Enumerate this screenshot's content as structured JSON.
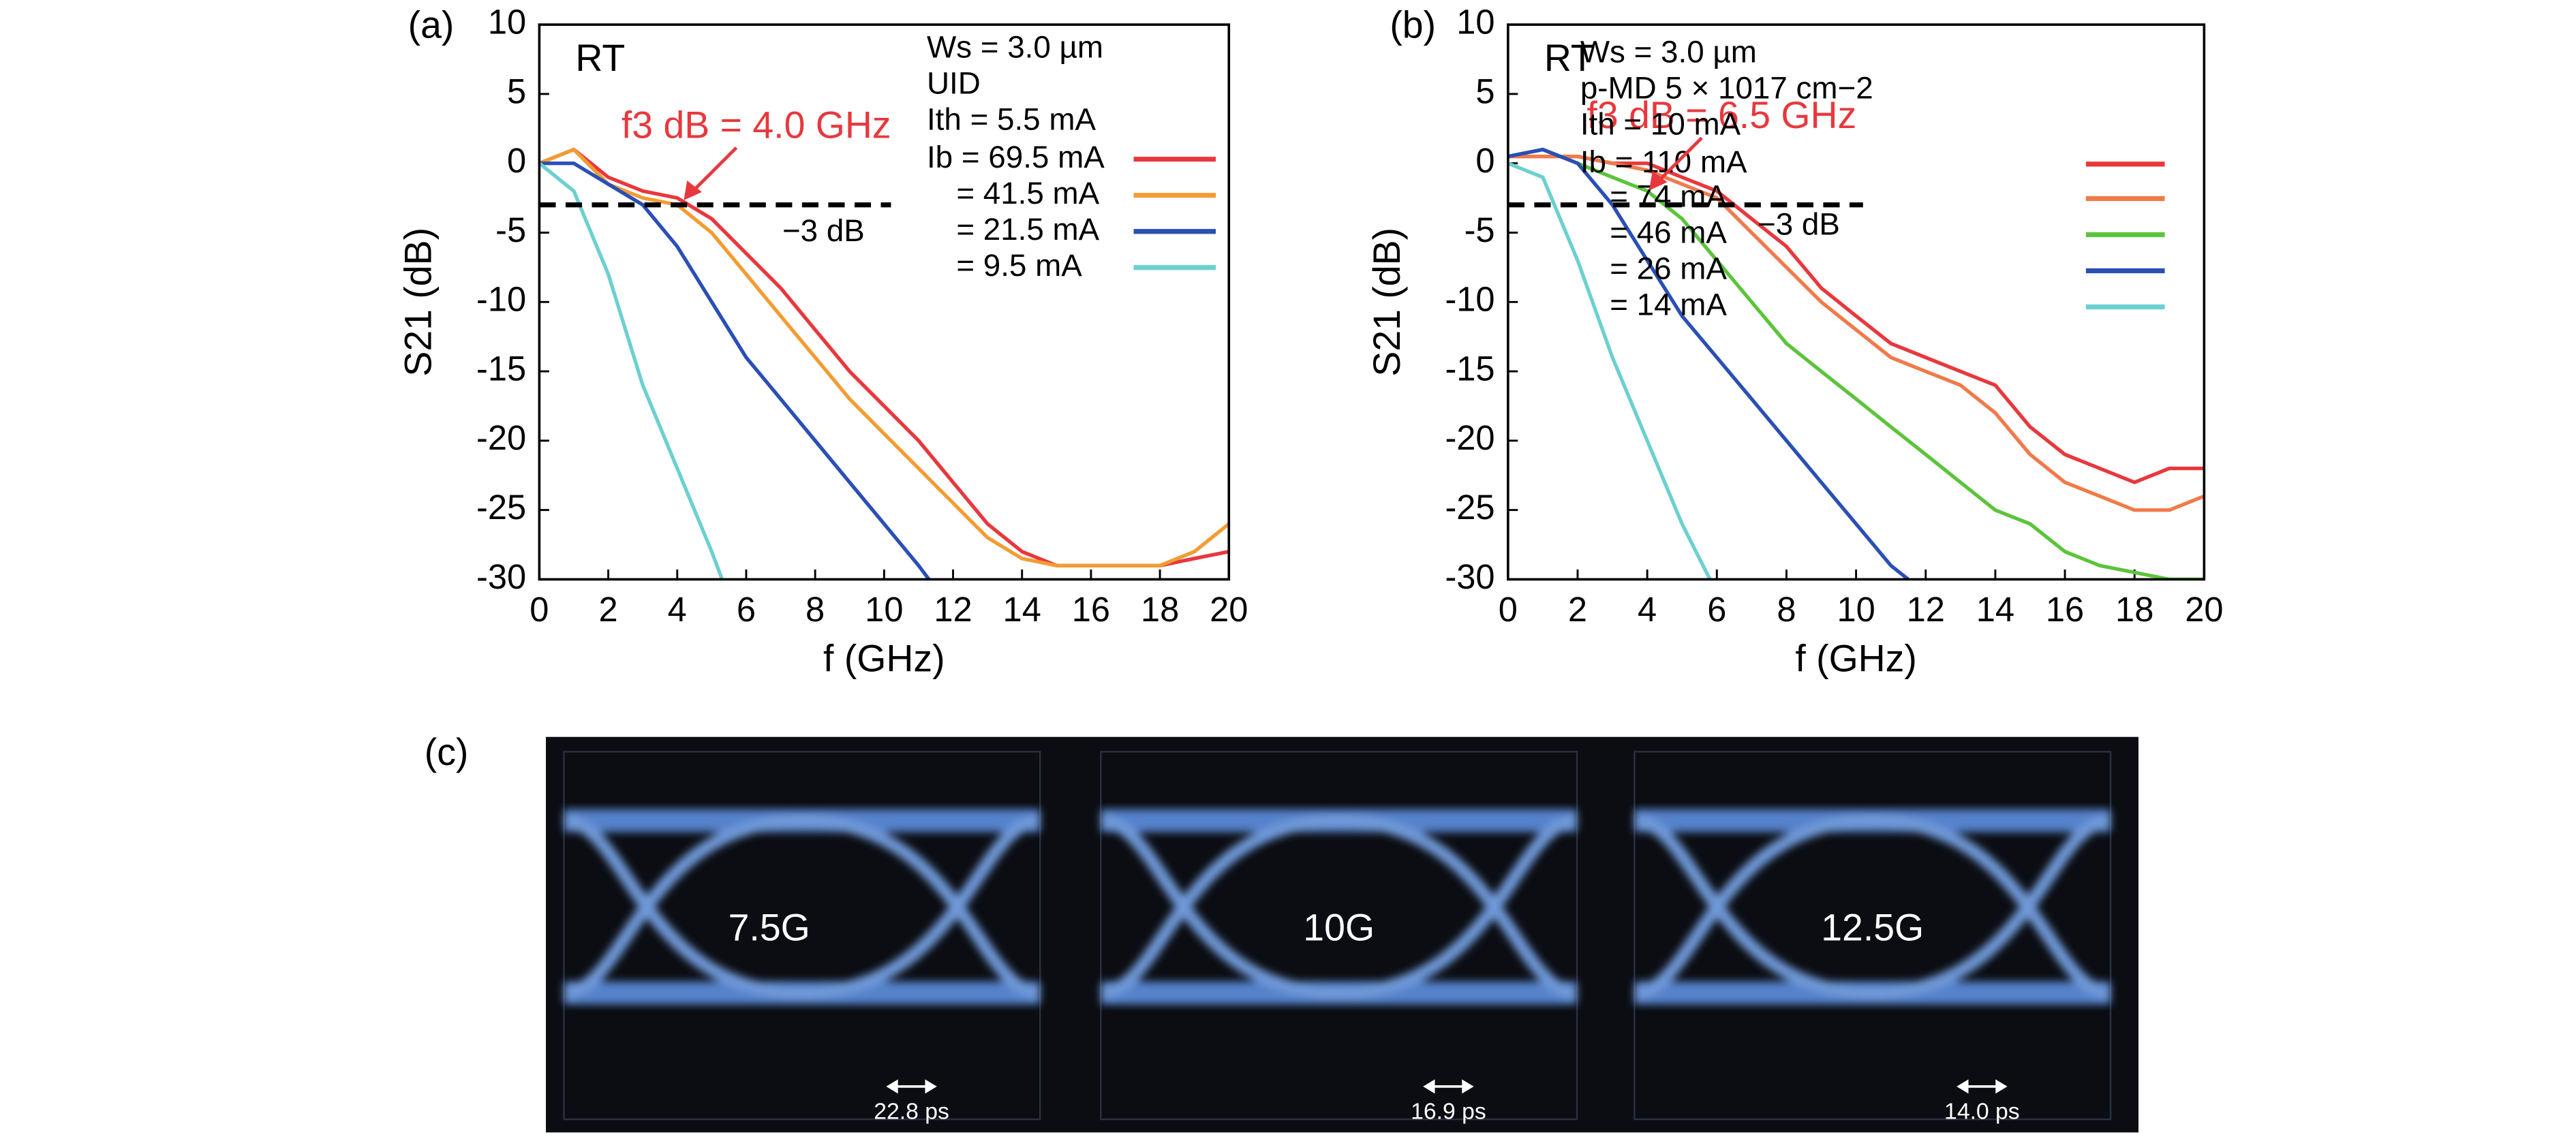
{
  "chart_data": [
    {
      "type": "line",
      "panel_label": "(a)",
      "condition": "RT",
      "f3db_label": "f3 dB = 4.0 GHz",
      "ref_line": -3,
      "ref_label": "−3 dB",
      "legend_header": [
        "Ws = 3.0 µm",
        "UID",
        "Ith = 5.5 mA"
      ],
      "x_label": "f (GHz)",
      "y_label": "S21 (dB)",
      "xlim": [
        0,
        20
      ],
      "ylim": [
        -30,
        10
      ],
      "xticks": [
        0,
        2,
        4,
        6,
        8,
        10,
        12,
        14,
        16,
        18,
        20
      ],
      "yticks": [
        -30,
        -25,
        -20,
        -15,
        -10,
        -5,
        0,
        5,
        10
      ],
      "series": [
        {
          "name": "Ib = 69.5 mA",
          "color": "#e8383d",
          "x": [
            0,
            1,
            2,
            3,
            4,
            5,
            6,
            7,
            8,
            9,
            10,
            11,
            12,
            13,
            14,
            15,
            16,
            17,
            18,
            19,
            20
          ],
          "values": [
            0,
            1,
            -1,
            -2,
            -2.5,
            -4,
            -6.5,
            -9,
            -12,
            -15,
            -17.5,
            -20,
            -23,
            -26,
            -28,
            -29,
            -29,
            -29,
            -29,
            -28.5,
            -28
          ]
        },
        {
          "name": "= 41.5 mA",
          "color": "#f39c33",
          "x": [
            0,
            1,
            2,
            3,
            4,
            5,
            6,
            7,
            8,
            9,
            10,
            11,
            12,
            13,
            14,
            15,
            16,
            17,
            18,
            19,
            20
          ],
          "values": [
            0,
            1,
            -1.5,
            -2.5,
            -3,
            -5,
            -8,
            -11,
            -14,
            -17,
            -19.5,
            -22,
            -24.5,
            -27,
            -28.5,
            -29,
            -29,
            -29,
            -29,
            -28,
            -26
          ]
        },
        {
          "name": "= 21.5 mA",
          "color": "#2a4fb5",
          "x": [
            0,
            1,
            2,
            3,
            4,
            5,
            6,
            7,
            8,
            9,
            10,
            11,
            11.3
          ],
          "values": [
            0,
            0,
            -1.5,
            -3,
            -6,
            -10,
            -14,
            -17,
            -20,
            -23,
            -26,
            -29,
            -30
          ]
        },
        {
          "name": "= 9.5 mA",
          "color": "#6cd0d0",
          "x": [
            0,
            1,
            2,
            3,
            4,
            5,
            5.3
          ],
          "values": [
            0,
            -2,
            -8,
            -16,
            -22,
            -28,
            -30
          ]
        }
      ]
    },
    {
      "type": "line",
      "panel_label": "(b)",
      "condition": "RT",
      "f3db_label": "f3 dB = 6.5 GHz",
      "ref_line": -3,
      "ref_label": "−3 dB",
      "legend_header": [
        "Ws = 3.0 µm",
        "p-MD 5 × 1017 cm−2",
        "Ith = 10 mA"
      ],
      "x_label": "f (GHz)",
      "y_label": "S21 (dB)",
      "xlim": [
        0,
        20
      ],
      "ylim": [
        -30,
        10
      ],
      "xticks": [
        0,
        2,
        4,
        6,
        8,
        10,
        12,
        14,
        16,
        18,
        20
      ],
      "yticks": [
        -30,
        -25,
        -20,
        -15,
        -10,
        -5,
        0,
        5,
        10
      ],
      "series": [
        {
          "name": "Ib = 110 mA",
          "color": "#e8383d",
          "x": [
            0,
            1,
            2,
            3,
            4,
            5,
            6,
            7,
            8,
            9,
            10,
            11,
            12,
            13,
            14,
            15,
            16,
            17,
            18,
            19,
            20
          ],
          "values": [
            0.5,
            0.5,
            0.5,
            0,
            0,
            -1,
            -2,
            -4,
            -6,
            -9,
            -11,
            -13,
            -14,
            -15,
            -16,
            -19,
            -21,
            -22,
            -23,
            -22,
            -22
          ]
        },
        {
          "name": "= 74 mA",
          "color": "#f07a4a",
          "x": [
            0,
            1,
            2,
            3,
            4,
            5,
            6,
            7,
            8,
            9,
            10,
            11,
            12,
            13,
            14,
            15,
            16,
            17,
            18,
            19,
            20
          ],
          "values": [
            0.5,
            0.5,
            0.5,
            0,
            -0.5,
            -1.5,
            -2.5,
            -5,
            -7.5,
            -10,
            -12,
            -14,
            -15,
            -16,
            -18,
            -21,
            -23,
            -24,
            -25,
            -25,
            -24
          ]
        },
        {
          "name": "= 46 mA",
          "color": "#5cc43c",
          "x": [
            0,
            1,
            2,
            3,
            4,
            5,
            6,
            7,
            8,
            9,
            10,
            11,
            12,
            13,
            14,
            15,
            16,
            17,
            18,
            19,
            20
          ],
          "values": [
            0.5,
            1,
            0,
            -1,
            -2,
            -4,
            -7,
            -10,
            -13,
            -15,
            -17,
            -19,
            -21,
            -23,
            -25,
            -26,
            -28,
            -29,
            -29.5,
            -30,
            -30
          ]
        },
        {
          "name": "= 26 mA",
          "color": "#2a4fb5",
          "x": [
            0,
            1,
            2,
            3,
            4,
            5,
            6,
            7,
            8,
            9,
            10,
            11,
            11.5
          ],
          "values": [
            0.5,
            1,
            0,
            -3,
            -7,
            -11,
            -14,
            -17,
            -20,
            -23,
            -26,
            -29,
            -30
          ]
        },
        {
          "name": "= 14 mA",
          "color": "#6cd0d0",
          "x": [
            0,
            1,
            2,
            3,
            4,
            5,
            5.8
          ],
          "values": [
            0,
            -1,
            -7,
            -14,
            -20,
            -26,
            -30
          ]
        }
      ]
    }
  ],
  "eye_diagram": {
    "panel_label": "(c)",
    "panels": [
      {
        "rate": "7.5G",
        "scale": "22.8 ps"
      },
      {
        "rate": "10G",
        "scale": "16.9 ps"
      },
      {
        "rate": "12.5G",
        "scale": "14.0 ps"
      }
    ]
  }
}
